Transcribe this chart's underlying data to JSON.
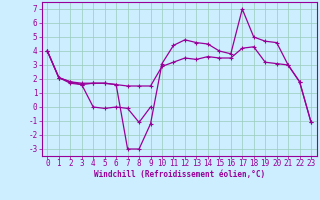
{
  "xlabel": "Windchill (Refroidissement éolien,°C)",
  "x": [
    0,
    1,
    2,
    3,
    4,
    5,
    6,
    7,
    8,
    9,
    10,
    11,
    12,
    13,
    14,
    15,
    16,
    17,
    18,
    19,
    20,
    21,
    22,
    23
  ],
  "line1": [
    4.0,
    2.1,
    1.8,
    1.7,
    1.7,
    1.7,
    1.6,
    -3.0,
    -3.0,
    -1.2,
    3.1,
    4.4,
    4.8,
    4.6,
    4.5,
    4.0,
    3.8,
    7.0,
    5.0,
    4.7,
    4.6,
    3.0,
    1.8,
    -1.1
  ],
  "line2": [
    4.0,
    2.1,
    1.8,
    1.6,
    0.0,
    -0.1,
    0.0,
    -0.1,
    null,
    null,
    null,
    null,
    null,
    null,
    null,
    null,
    null,
    null,
    null,
    null,
    null,
    null,
    null,
    null
  ],
  "line2b": [
    null,
    null,
    null,
    null,
    null,
    null,
    null,
    null,
    -1.1,
    0.0,
    null,
    null,
    null,
    null,
    null,
    null,
    null,
    null,
    null,
    null,
    null,
    null,
    null,
    null
  ],
  "line3": [
    4.0,
    2.1,
    1.7,
    1.6,
    1.7,
    1.7,
    1.6,
    1.5,
    1.5,
    1.5,
    2.9,
    3.2,
    3.5,
    3.4,
    3.6,
    3.5,
    3.5,
    4.2,
    4.3,
    3.2,
    3.1,
    3.0,
    1.8,
    -1.1
  ],
  "background_color": "#cceeff",
  "line_color": "#990099",
  "grid_color": "#99ccbb",
  "ylim": [
    -3.5,
    7.5
  ],
  "yticks": [
    -3,
    -2,
    -1,
    0,
    1,
    2,
    3,
    4,
    5,
    6,
    7
  ],
  "xticks": [
    0,
    1,
    2,
    3,
    4,
    5,
    6,
    7,
    8,
    9,
    10,
    11,
    12,
    13,
    14,
    15,
    16,
    17,
    18,
    19,
    20,
    21,
    22,
    23
  ],
  "tick_fontsize": 5.5,
  "xlabel_fontsize": 5.5
}
